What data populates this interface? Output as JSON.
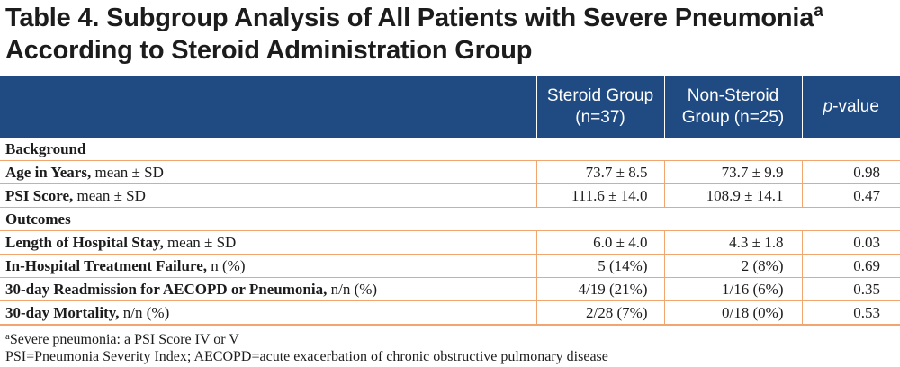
{
  "title": {
    "line1": "Table 4. Subgroup Analysis of All Patients with Severe Pneumonia",
    "sup": "a",
    "line2": "According to Steroid Administration Group"
  },
  "header": {
    "steroid_line1": "Steroid Group",
    "steroid_line2": "(n=37)",
    "nonsteroid_line1": "Non-Steroid",
    "nonsteroid_line2": "Group (n=25)",
    "pvalue_italic": "p",
    "pvalue_rest": "-value"
  },
  "sections": {
    "background": "Background",
    "outcomes": "Outcomes"
  },
  "rows": [
    {
      "label": "Age in Years,",
      "suffix": " mean ± SD",
      "steroid": "73.7 ± 8.5",
      "nonsteroid": "73.7 ± 9.9",
      "p": "0.98"
    },
    {
      "label": "PSI Score,",
      "suffix": " mean ± SD",
      "steroid": "111.6 ± 14.0",
      "nonsteroid": "108.9 ± 14.1",
      "p": "0.47"
    },
    {
      "label": "Length of Hospital Stay,",
      "suffix": " mean ± SD",
      "steroid": "6.0 ± 4.0",
      "nonsteroid": "4.3 ± 1.8",
      "p": "0.03"
    },
    {
      "label": "In-Hospital Treatment Failure,",
      "suffix": " n (%)",
      "steroid": "5 (14%)",
      "nonsteroid": "2 (8%)",
      "p": "0.69"
    },
    {
      "label": "30-day Readmission for AECOPD or Pneumonia,",
      "suffix": " n/n (%)",
      "steroid": "4/19 (21%)",
      "nonsteroid": "1/16 (6%)",
      "p": "0.35"
    },
    {
      "label": "30-day Mortality,",
      "suffix": " n/n (%)",
      "steroid": "2/28 (7%)",
      "nonsteroid": "0/18 (0%)",
      "p": "0.53"
    }
  ],
  "footnotes": {
    "a_sup": "a",
    "a_text": "Severe pneumonia: a PSI Score IV or V",
    "abbrev": "PSI=Pneumonia Severity Index; AECOPD=acute exacerbation of chronic obstructive pulmonary disease"
  }
}
